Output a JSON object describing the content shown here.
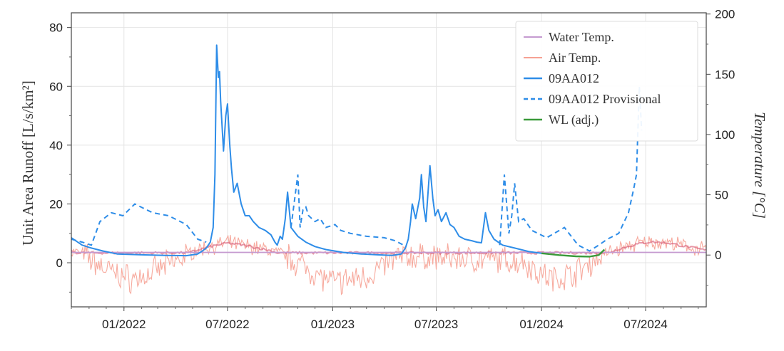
{
  "chart_data": {
    "type": "line",
    "ylabel": "Unit Area Runoff [L/s/km²]",
    "y2label": "Temperature [°C]",
    "x_ticks": [
      "2022-01-01",
      "2022-07-01",
      "2023-01-01",
      "2023-07-01",
      "2024-01-01",
      "2024-07-01"
    ],
    "x_tick_labels": [
      "01/2022",
      "07/2022",
      "01/2023",
      "07/2023",
      "01/2024",
      "07/2024"
    ],
    "xlim": [
      "2021-10-01",
      "2024-10-15"
    ],
    "ylim": [
      -15,
      85
    ],
    "y_ticks": [
      0,
      20,
      40,
      60,
      80
    ],
    "y2lim": [
      -43,
      201
    ],
    "y2_ticks": [
      0,
      50,
      100,
      150,
      200
    ],
    "grid": true,
    "legend": {
      "position": "top-right",
      "entries": [
        "Water Temp.",
        "Air Temp.",
        "09AA012",
        "09AA012 Provisional",
        "WL (adj.)"
      ]
    },
    "colors": {
      "water_temp": "#c59ad0",
      "air_temp": "#f6a193",
      "runoff": "#2e8de8",
      "provisional": "#2e8de8",
      "wl_adj": "#3a9a3a",
      "air_temp_smooth": "#d9607a"
    },
    "series": [
      {
        "name": "Water Temp.",
        "axis": "right",
        "style": "solid",
        "x": [
          "2021-10-01",
          "2024-10-15"
        ],
        "y": [
          2.2,
          2.2
        ]
      },
      {
        "name": "Air Temp.",
        "axis": "right",
        "style": "noisy",
        "x": [
          "2021-10-01",
          "2021-10-20",
          "2021-11-10",
          "2021-12-01",
          "2021-12-20",
          "2022-01-15",
          "2022-02-10",
          "2022-03-10",
          "2022-04-10",
          "2022-05-01",
          "2022-06-01",
          "2022-07-01",
          "2022-08-01",
          "2022-09-01",
          "2022-09-20",
          "2022-10-15",
          "2022-11-15",
          "2022-12-10",
          "2023-01-05",
          "2023-02-05",
          "2023-03-05",
          "2023-04-05",
          "2023-05-01",
          "2023-12-01",
          "2023-12-25",
          "2024-01-20",
          "2024-02-15",
          "2024-03-10",
          "2024-04-01",
          "2024-04-20",
          "2024-05-15",
          "2024-06-15",
          "2024-07-10",
          "2024-08-10",
          "2024-09-10",
          "2024-10-15"
        ],
        "y": [
          3,
          1,
          -6,
          -12,
          -16,
          -20,
          -17,
          -10,
          -3,
          3,
          7,
          10,
          8,
          5,
          3,
          -2,
          -10,
          -18,
          -23,
          -20,
          -17,
          -7,
          -1,
          -5,
          -14,
          -20,
          -17,
          -12,
          -5,
          1,
          5,
          9,
          11,
          10,
          7,
          4
        ]
      },
      {
        "name": "09AA012",
        "axis": "left",
        "style": "solid",
        "x": [
          "2021-10-01",
          "2021-10-20",
          "2021-11-05",
          "2021-11-25",
          "2021-12-20",
          "2022-02-01",
          "2022-03-15",
          "2022-04-20",
          "2022-05-10",
          "2022-05-18",
          "2022-05-25",
          "2022-06-01",
          "2022-06-06",
          "2022-06-09",
          "2022-06-12",
          "2022-06-15",
          "2022-06-17",
          "2022-06-19",
          "2022-06-24",
          "2022-06-28",
          "2022-07-01",
          "2022-07-05",
          "2022-07-08",
          "2022-07-12",
          "2022-07-18",
          "2022-07-25",
          "2022-08-01",
          "2022-08-08",
          "2022-08-15",
          "2022-08-25",
          "2022-09-05",
          "2022-09-15",
          "2022-09-22",
          "2022-09-26",
          "2022-10-01",
          "2022-10-05",
          "2022-10-10",
          "2022-10-14",
          "2022-10-20",
          "2022-11-01",
          "2022-11-15",
          "2022-12-01",
          "2022-12-20",
          "2023-01-20",
          "2023-02-20",
          "2023-03-20",
          "2023-04-15",
          "2023-05-01",
          "2023-05-08",
          "2023-05-13",
          "2023-05-17",
          "2023-05-20",
          "2023-05-26",
          "2023-06-02",
          "2023-06-05",
          "2023-06-09",
          "2023-06-13",
          "2023-06-20",
          "2023-06-25",
          "2023-06-29",
          "2023-07-04",
          "2023-07-10",
          "2023-07-18",
          "2023-07-25",
          "2023-08-01",
          "2023-08-10",
          "2023-08-20",
          "2023-09-01",
          "2023-09-10",
          "2023-09-18",
          "2023-09-25",
          "2023-10-01",
          "2023-10-10",
          "2023-10-25",
          "2023-11-15",
          "2023-12-10",
          "2024-01-01"
        ],
        "y": [
          8.5,
          6,
          5,
          4,
          3,
          2.7,
          2.5,
          2.4,
          3,
          4,
          5,
          7,
          12,
          30,
          74,
          63,
          65,
          55,
          38,
          50,
          54,
          40,
          32,
          24,
          27,
          20,
          16,
          16,
          14,
          12,
          11,
          9.5,
          7,
          6,
          9,
          8,
          15,
          24,
          12,
          9,
          7,
          5.5,
          4.5,
          3.5,
          3,
          2.7,
          2.5,
          3,
          5,
          8,
          14,
          20,
          15,
          22,
          30,
          19,
          14,
          33,
          22,
          16,
          18,
          14,
          17,
          13,
          12,
          9,
          8,
          7.5,
          7,
          6.8,
          17,
          11,
          8,
          6,
          5,
          3.8,
          3.2
        ]
      },
      {
        "name": "09AA012 Provisional",
        "axis": "left",
        "style": "dashed",
        "x": [
          "2021-10-01",
          "2021-10-20",
          "2021-11-05",
          "2021-11-20",
          "2021-12-10",
          "2021-12-30",
          "2022-01-20",
          "2022-02-20",
          "2022-03-20",
          "2022-04-20",
          "2022-05-10",
          "2022-05-25",
          null,
          "2022-10-20",
          "2022-11-01",
          "2022-11-05",
          "2022-11-10",
          "2022-11-15",
          "2022-11-20",
          "2022-12-01",
          "2022-12-10",
          "2022-12-20",
          "2023-01-05",
          "2023-01-15",
          "2023-02-01",
          "2023-03-01",
          "2023-04-01",
          "2023-04-20",
          "2023-05-05",
          null,
          "2023-10-20",
          "2023-10-28",
          "2023-11-05",
          "2023-11-10",
          "2023-11-15",
          "2023-11-22",
          "2023-12-01",
          "2023-12-15",
          "2024-01-10",
          "2024-02-10",
          "2024-03-05",
          "2024-03-25",
          "2024-04-10",
          "2024-04-25",
          "2024-05-15",
          "2024-06-01",
          "2024-06-10",
          "2024-06-15",
          "2024-06-20",
          "2024-06-24"
        ],
        "y": [
          8,
          7,
          6,
          14,
          17,
          16,
          20,
          17,
          16,
          13,
          8,
          7,
          null,
          12,
          30,
          12,
          18,
          19,
          16,
          14,
          15,
          12,
          13,
          11,
          10,
          9,
          8.5,
          7.5,
          6,
          null,
          6,
          30,
          10,
          16,
          27,
          14,
          15,
          11,
          8.5,
          12,
          6,
          4,
          6,
          8,
          10,
          17,
          25,
          30,
          60,
          45
        ]
      },
      {
        "name": "WL (adj.)",
        "axis": "left",
        "style": "solid",
        "x": [
          "2024-01-01",
          "2024-02-01",
          "2024-03-01",
          "2024-03-25",
          "2024-04-10",
          "2024-04-20"
        ],
        "y": [
          3.2,
          2.6,
          2.2,
          2.1,
          2.6,
          4.5
        ]
      }
    ]
  }
}
